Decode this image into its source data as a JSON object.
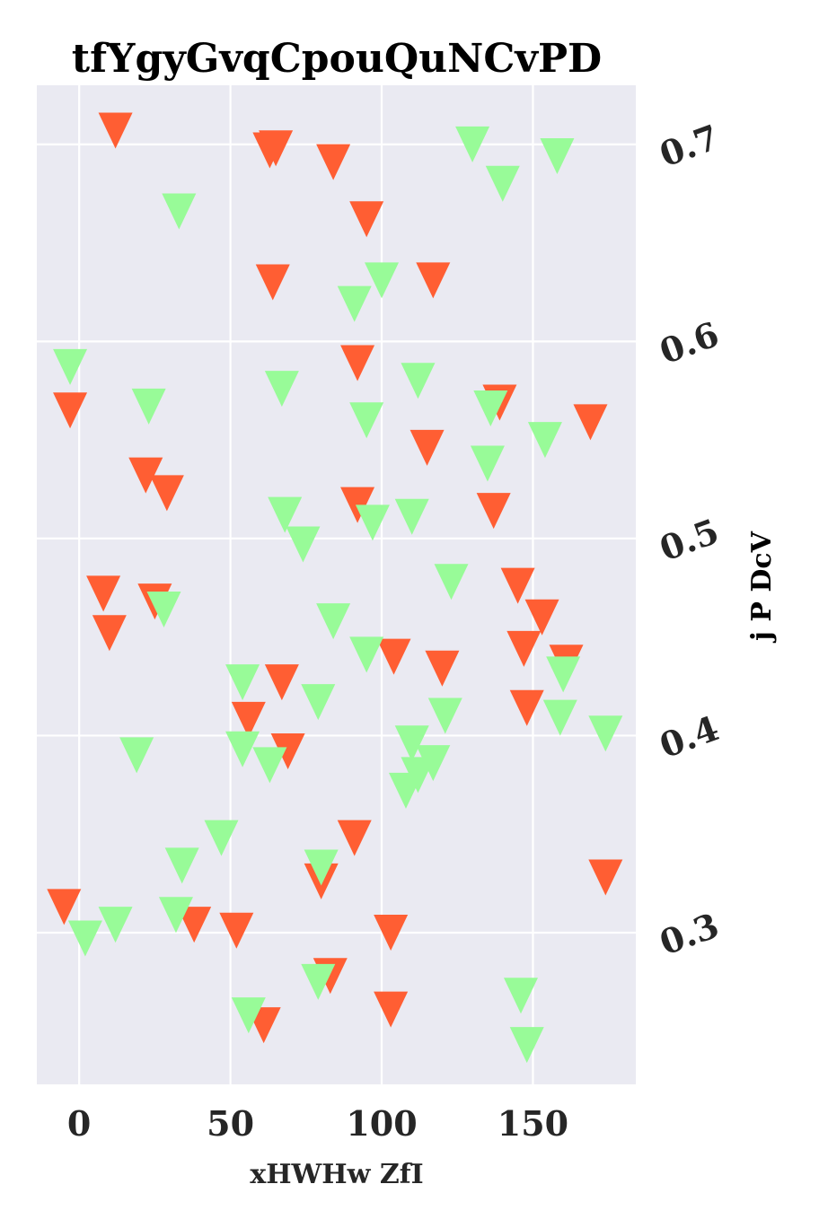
{
  "chart_data": {
    "type": "scatter",
    "title": "tfYgyGvqCpouQuNCvPD",
    "xlabel": "xHWHw ZfI",
    "ylabel": "j P DcV",
    "xlim": [
      -14,
      184
    ],
    "ylim": [
      0.223,
      0.73
    ],
    "xticks": [
      0,
      50,
      100,
      150
    ],
    "yticks": [
      0.3,
      0.4,
      0.5,
      0.6,
      0.7
    ],
    "ytick_labels": [
      "0.3",
      "0.4",
      "0.5",
      "0.6",
      "0.7"
    ],
    "yaxis_side": "right",
    "grid": true,
    "background": "#eaeaf2",
    "marker": "triangle-down",
    "series": [
      {
        "color": "#ff5e33",
        "x": [
          12,
          63,
          65,
          84,
          95,
          64,
          117,
          -3,
          92,
          22,
          29,
          92,
          137,
          115,
          169,
          139,
          8,
          25,
          10,
          145,
          153,
          147,
          104,
          120,
          67,
          161,
          148,
          56,
          69,
          91,
          80,
          -5,
          38,
          52,
          103,
          83,
          61,
          103,
          174
        ],
        "y": [
          0.707,
          0.697,
          0.698,
          0.691,
          0.662,
          0.63,
          0.631,
          0.565,
          0.589,
          0.532,
          0.523,
          0.517,
          0.514,
          0.546,
          0.559,
          0.569,
          0.472,
          0.468,
          0.452,
          0.476,
          0.46,
          0.444,
          0.44,
          0.434,
          0.427,
          0.437,
          0.414,
          0.408,
          0.392,
          0.348,
          0.326,
          0.313,
          0.304,
          0.301,
          0.3,
          0.278,
          0.253,
          0.261,
          0.328
        ]
      },
      {
        "color": "#98fb98",
        "x": [
          130,
          140,
          158,
          33,
          100,
          91,
          -3,
          112,
          67,
          23,
          95,
          136,
          135,
          154,
          68,
          97,
          110,
          74,
          123,
          28,
          84,
          95,
          54,
          79,
          121,
          110,
          159,
          174,
          160,
          54,
          19,
          63,
          112,
          117,
          108,
          47,
          34,
          80,
          32,
          2,
          12,
          79,
          56,
          146,
          148
        ],
        "y": [
          0.7,
          0.68,
          0.694,
          0.666,
          0.631,
          0.619,
          0.587,
          0.58,
          0.576,
          0.567,
          0.56,
          0.566,
          0.538,
          0.55,
          0.512,
          0.508,
          0.511,
          0.497,
          0.478,
          0.464,
          0.458,
          0.441,
          0.427,
          0.417,
          0.41,
          0.396,
          0.409,
          0.401,
          0.431,
          0.393,
          0.39,
          0.385,
          0.38,
          0.386,
          0.372,
          0.348,
          0.334,
          0.333,
          0.309,
          0.297,
          0.304,
          0.275,
          0.258,
          0.268,
          0.243
        ]
      }
    ]
  }
}
